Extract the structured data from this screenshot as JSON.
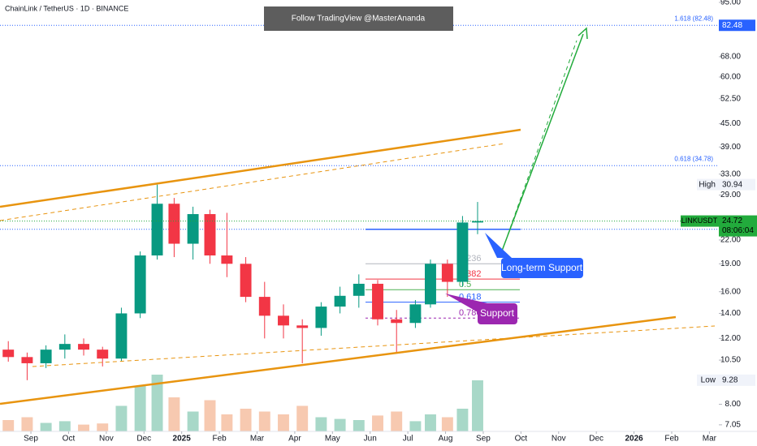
{
  "header": "ChainLink / TetherUS · 1D · BINANCE",
  "banner": "Follow TradingView @MasterAnanda",
  "callouts": [
    "Long-term Support",
    "Support"
  ],
  "chart_data": {
    "type": "candlestick",
    "log_scale": true,
    "up_color": "#089981",
    "down_color": "#f23645",
    "volume_up_color": "#a8d8c8",
    "volume_down_color": "#f7c9b0",
    "x": [
      -0.6,
      -0.1,
      0.4,
      0.9,
      1.4,
      1.9,
      2.4,
      2.9,
      3.35,
      3.8,
      4.3,
      4.75,
      5.2,
      5.7,
      6.2,
      6.7,
      7.2,
      7.7,
      8.2,
      8.7,
      9.2,
      9.7,
      10.2,
      10.6,
      11.05,
      11.45,
      11.85
    ],
    "open": [
      11.2,
      10.7,
      10.3,
      11.2,
      11.6,
      11.2,
      10.6,
      14.0,
      20.0,
      27.5,
      21.5,
      25.8,
      20.0,
      19.0,
      15.5,
      13.8,
      13.0,
      12.8,
      14.6,
      15.6,
      16.8,
      13.5,
      13.2,
      14.8,
      19.0,
      17.0,
      24.5
    ],
    "high": [
      11.8,
      11.0,
      11.5,
      12.3,
      12.0,
      11.4,
      14.5,
      20.5,
      30.94,
      28.5,
      27.0,
      26.5,
      26.0,
      19.8,
      17.0,
      14.8,
      13.5,
      15.0,
      16.5,
      17.8,
      17.2,
      14.3,
      15.2,
      19.5,
      19.5,
      25.5,
      27.8
    ],
    "low": [
      10.4,
      9.28,
      10.0,
      10.6,
      10.8,
      10.1,
      10.4,
      13.6,
      19.5,
      19.8,
      19.5,
      19.0,
      17.5,
      15.0,
      12.0,
      12.0,
      10.3,
      12.2,
      14.0,
      14.5,
      13.0,
      11.0,
      12.8,
      14.5,
      15.5,
      16.5,
      22.8
    ],
    "close": [
      10.7,
      10.3,
      11.2,
      11.6,
      11.2,
      10.6,
      14.0,
      20.0,
      27.5,
      21.5,
      25.8,
      20.0,
      19.0,
      15.5,
      13.8,
      13.0,
      12.8,
      14.6,
      15.6,
      16.8,
      13.5,
      13.2,
      14.8,
      19.0,
      17.0,
      24.5,
      24.72
    ],
    "volume": [
      20,
      25,
      15,
      18,
      12,
      14,
      45,
      80,
      100,
      60,
      35,
      55,
      30,
      40,
      35,
      30,
      45,
      25,
      22,
      20,
      28,
      35,
      18,
      30,
      25,
      40,
      90
    ],
    "volume_lim": [
      0,
      100
    ],
    "xlim": [
      -0.82,
      18.25
    ],
    "ylim": [
      6.77,
      96.4
    ],
    "xticks": [
      {
        "value": 0,
        "label": "Sep"
      },
      {
        "value": 1,
        "label": "Oct"
      },
      {
        "value": 2,
        "label": "Nov"
      },
      {
        "value": 3,
        "label": "Dec"
      },
      {
        "value": 4,
        "label": "2025"
      },
      {
        "value": 5,
        "label": "Feb"
      },
      {
        "value": 6,
        "label": "Mar"
      },
      {
        "value": 7,
        "label": "Apr"
      },
      {
        "value": 8,
        "label": "May"
      },
      {
        "value": 9,
        "label": "Jun"
      },
      {
        "value": 10,
        "label": "Jul"
      },
      {
        "value": 11,
        "label": "Aug"
      },
      {
        "value": 12,
        "label": "Sep"
      },
      {
        "value": 13,
        "label": "Oct"
      },
      {
        "value": 14,
        "label": "Nov"
      },
      {
        "value": 15,
        "label": "Dec"
      },
      {
        "value": 16,
        "label": "2026"
      },
      {
        "value": 17,
        "label": "Feb"
      },
      {
        "value": 18,
        "label": "Mar"
      }
    ],
    "yticks": [
      {
        "value": 95,
        "label": "95.00"
      },
      {
        "value": 68,
        "label": "68.00"
      },
      {
        "value": 60,
        "label": "60.00"
      },
      {
        "value": 52.5,
        "label": "52.50"
      },
      {
        "value": 45,
        "label": "45.00"
      },
      {
        "value": 39,
        "label": "39.00"
      },
      {
        "value": 33,
        "label": "33.00"
      },
      {
        "value": 29,
        "label": "29.00"
      },
      {
        "value": 22,
        "label": "22.00"
      },
      {
        "value": 19,
        "label": "19.00"
      },
      {
        "value": 16,
        "label": "16.00"
      },
      {
        "value": 14,
        "label": "14.00"
      },
      {
        "value": 12,
        "label": "12.00"
      },
      {
        "value": 10.5,
        "label": "10.50"
      },
      {
        "value": 8,
        "label": "8.00"
      },
      {
        "value": 7.05,
        "label": "7.05"
      }
    ],
    "levels": [
      {
        "label": "1.618 (82.48)",
        "value": 82.48,
        "color": "#2962ff"
      },
      {
        "label": "0.618 (34.78)",
        "value": 34.78,
        "color": "#2962ff"
      }
    ],
    "fib": [
      {
        "label": "0.236",
        "value": 19.0,
        "color": "#b2b5be"
      },
      {
        "label": "0.382",
        "value": 17.3,
        "color": "#f23645"
      },
      {
        "label": "0.5",
        "value": 16.2,
        "color": "#4caf50"
      },
      {
        "label": "0.618",
        "value": 15.0,
        "color": "#2962ff"
      },
      {
        "label": "0.786",
        "value": 13.6,
        "color": "#9c27b0"
      }
    ],
    "support_level": 23.5,
    "price_labels": [
      {
        "value": 82.48,
        "label": "82.48",
        "color": "#2962ff"
      },
      {
        "value": 30.94,
        "name": "High",
        "label": "30.94",
        "color": "#f0f3fa"
      },
      {
        "value": 24.72,
        "name": "LINKUSDT",
        "label": "24.72",
        "extra": "08:06:04",
        "color": "#22ab3c"
      },
      {
        "value": 9.28,
        "name": "Low",
        "label": "9.28",
        "color": "#f0f3fa"
      }
    ]
  }
}
